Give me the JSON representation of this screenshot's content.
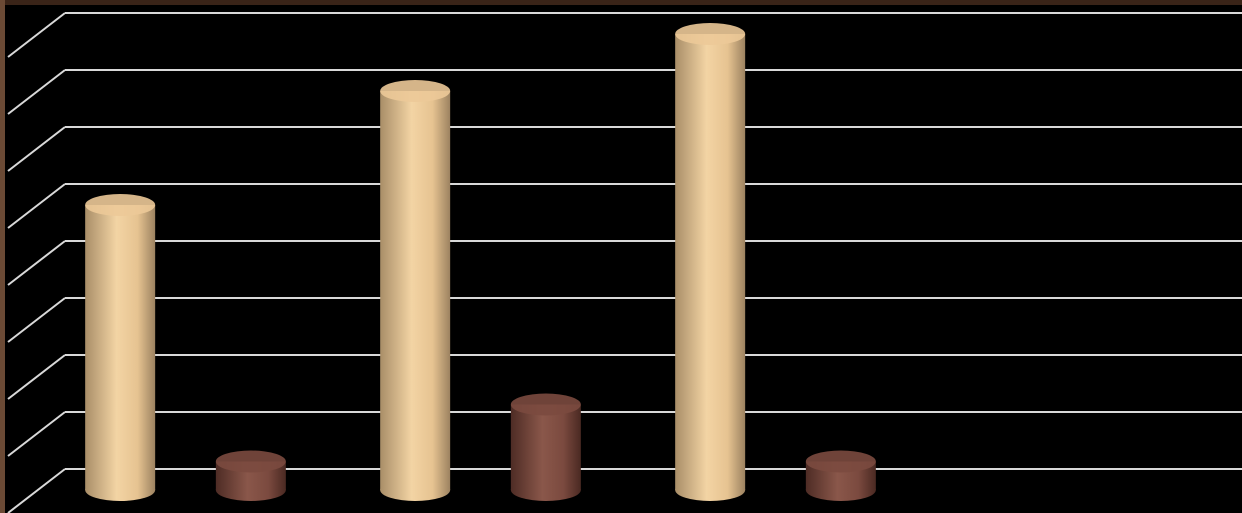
{
  "chart_data": {
    "type": "bar",
    "style": "3d-cylinder",
    "categories": [
      null,
      null,
      null
    ],
    "series": [
      {
        "color": "#ecc998",
        "values": [
          5,
          7,
          8
        ]
      },
      {
        "color": "#7b4a3f",
        "values": [
          0.5,
          1.5,
          0.5
        ]
      }
    ],
    "ylim": [
      0,
      8
    ],
    "yticks": [
      0,
      1,
      2,
      3,
      4,
      5,
      6,
      7,
      8
    ],
    "grid": true
  }
}
